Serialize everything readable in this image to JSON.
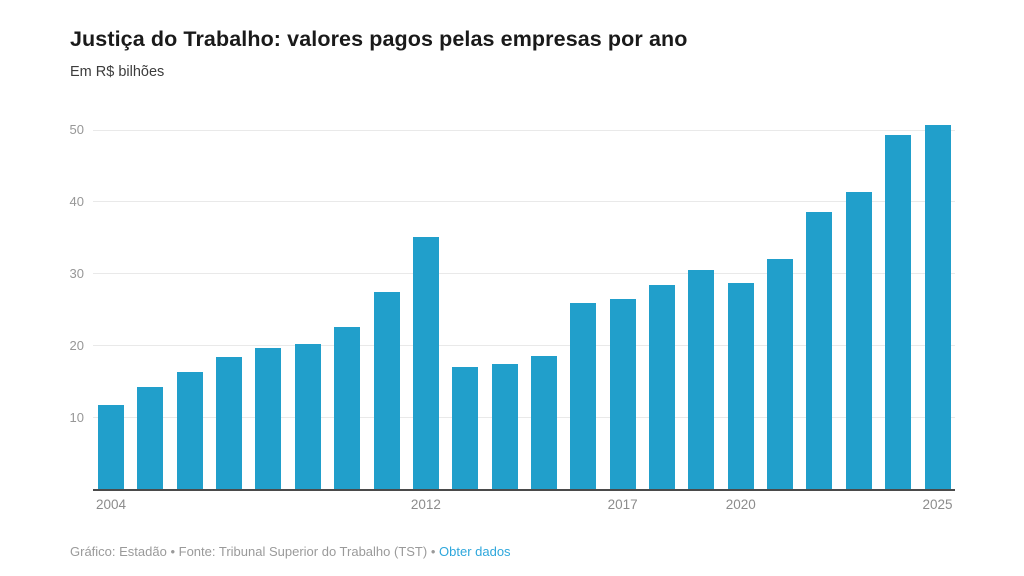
{
  "header": {
    "title": "Justiça do Trabalho: valores pagos pelas empresas por ano",
    "subtitle": "Em R$ bilhões"
  },
  "chart_data": {
    "type": "bar",
    "title": "Justiça do Trabalho: valores pagos pelas empresas por ano",
    "unit_label": "Em R$ bilhões",
    "x": [
      2004,
      2005,
      2006,
      2007,
      2008,
      2009,
      2010,
      2011,
      2012,
      2013,
      2014,
      2015,
      2016,
      2017,
      2018,
      2019,
      2020,
      2021,
      2022,
      2023,
      2024,
      2025
    ],
    "values": [
      11.8,
      14.3,
      16.3,
      18.4,
      19.7,
      20.3,
      22.6,
      27.5,
      35.1,
      17.1,
      17.5,
      18.6,
      26.0,
      26.5,
      28.4,
      30.5,
      28.7,
      32.0,
      38.6,
      41.4,
      49.3,
      50.7
    ],
    "ylim": [
      0,
      52.8
    ],
    "yticks": [
      10,
      20,
      30,
      40,
      50
    ],
    "xtick_labels": [
      "2004",
      "2012",
      "2017",
      "2020",
      "2025"
    ],
    "grid": true,
    "legend_position": "none",
    "bar_color": "#219fcb",
    "gridline_color": "#e9e9e9",
    "axis_line_color": "#4a4a4a",
    "y_label_color": "#979797",
    "x_label_color": "#8c8c8c"
  },
  "footer": {
    "credit": "Gráfico: Estadão",
    "separator": "•",
    "source": "Fonte: Tribunal Superior do Trabalho (TST)",
    "link_label": "Obter dados",
    "link_color": "#2ea7dc"
  }
}
